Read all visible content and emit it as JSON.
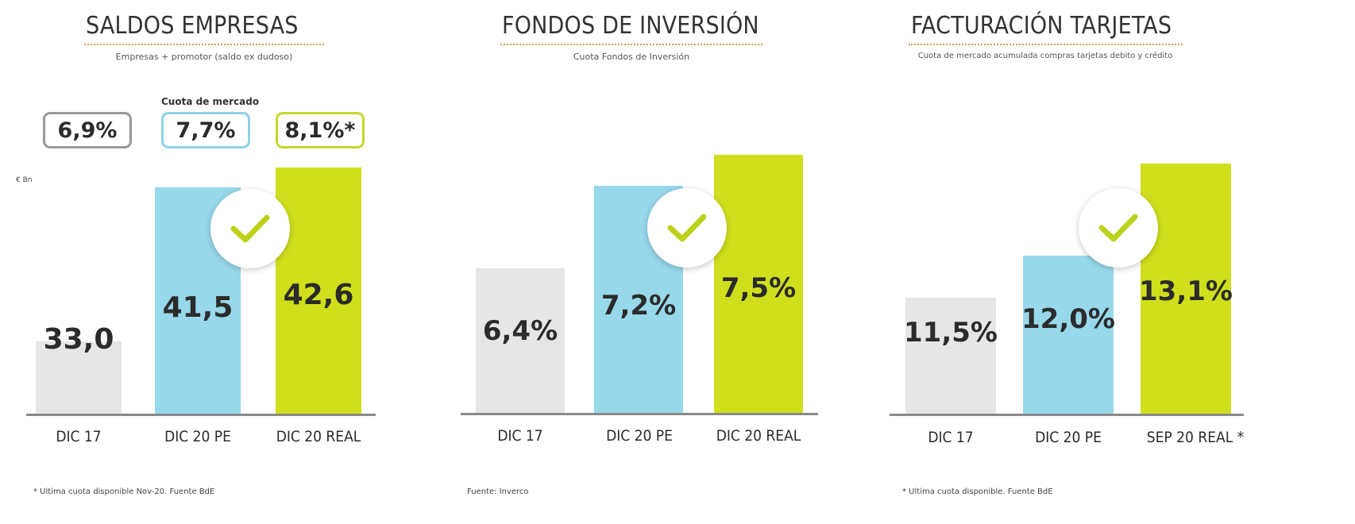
{
  "colors": {
    "gray": "#e6e6e6",
    "blue": "#97d8ea",
    "green": "#cfdf1c",
    "check": "#bcd11a",
    "box_gray": "#9a9a9a",
    "box_blue": "#8fd3e8",
    "box_green": "#c4d92a"
  },
  "icons": {
    "check": "check-icon"
  },
  "chart_data": [
    {
      "type": "bar",
      "title": "SALDOS EMPRESAS",
      "subtitle": "Empresas + promotor (saldo ex dudoso)",
      "ylabel": "€ Bn",
      "categories": [
        "DIC 17",
        "DIC 20 PE",
        "DIC 20 REAL"
      ],
      "values": [
        33.0,
        41.5,
        42.6
      ],
      "value_labels": [
        "33,0",
        "41,5",
        "42,6"
      ],
      "market_share_caption": "Cuota de mercado",
      "market_share_labels": [
        "6,9%",
        "7,7%",
        "8,1%*"
      ],
      "footnote": "* Ultima cuota disponible Nov-20. Fuente BdE",
      "grid": false
    },
    {
      "type": "bar",
      "title": "FONDOS DE INVERSIÓN",
      "subtitle": "Cuota Fondos de Inversión",
      "categories": [
        "DIC 17",
        "DIC 20 PE",
        "DIC 20 REAL"
      ],
      "values": [
        6.4,
        7.2,
        7.5
      ],
      "value_labels": [
        "6,4%",
        "7,2%",
        "7,5%"
      ],
      "footnote": "Fuente: Inverco",
      "grid": false
    },
    {
      "type": "bar",
      "title": "FACTURACIÓN TARJETAS",
      "subtitle": "Cuota de mercado acumulada compras tarjetas debito y crédito",
      "categories": [
        "DIC 17",
        "DIC 20 PE",
        "SEP 20 REAL *"
      ],
      "values": [
        11.5,
        12.0,
        13.1
      ],
      "value_labels": [
        "11,5%",
        "12,0%",
        "13,1%"
      ],
      "footnote": "* Ultima cuota disponible. Fuente BdE",
      "grid": false
    }
  ]
}
